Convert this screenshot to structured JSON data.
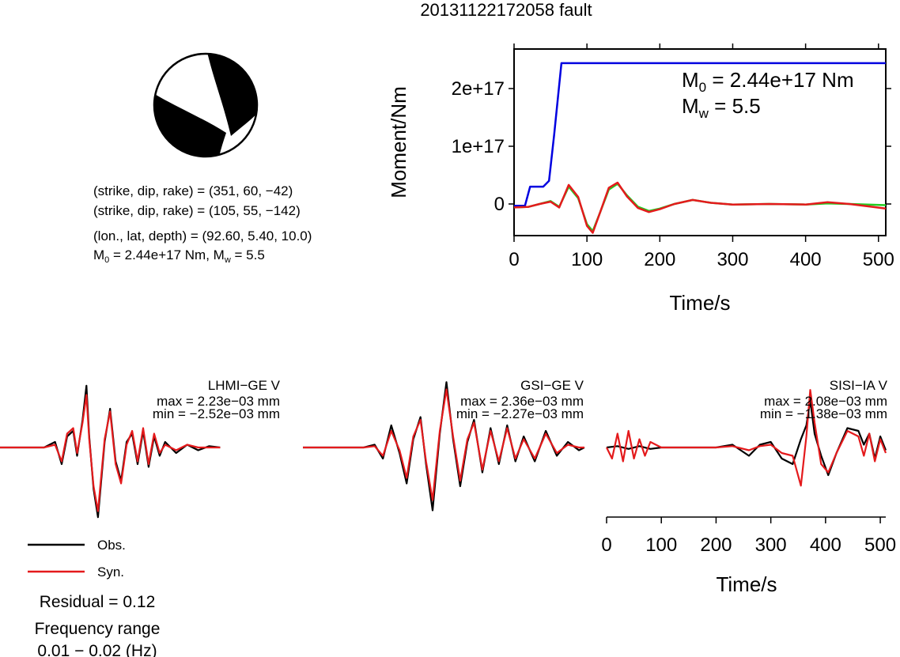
{
  "title": "20131122172058 fault",
  "mechanism": {
    "plane1": "(strike, dip, rake) = (351, 60, −42)",
    "plane2": "(strike, dip, rake) = (105, 55, −142)",
    "location": "(lon., lat, depth) = (92.60, 5.40, 10.0)",
    "moment_prefix": "M",
    "moment_sub": "0",
    "moment_rest": " = 2.44e+17 Nm, M",
    "mw_sub": "w",
    "mw_rest": " = 5.5"
  },
  "moment_plot": {
    "ylabel": "Moment/Nm",
    "xlabel": "Time/s",
    "annot_m0_prefix": "M",
    "annot_m0_sub": "0",
    "annot_m0_rest": " = 2.44e+17 Nm",
    "annot_mw_prefix": "M",
    "annot_mw_sub": "w",
    "annot_mw_rest": " = 5.5"
  },
  "bottom_axis": {
    "xlabel": "Time/s"
  },
  "legend": {
    "obs": "Obs.",
    "syn": "Syn."
  },
  "residual": "Residual = 0.12",
  "frequency": {
    "label": "Frequency range",
    "value": "0.01 − 0.02 (Hz)"
  },
  "colors": {
    "obs": "#000000",
    "syn": "#e41a1c",
    "moment": "#0000e0",
    "moment_rate": "#22cc22"
  },
  "chart_data": [
    {
      "type": "line",
      "title": "",
      "xlabel": "Time/s",
      "ylabel": "Moment/Nm",
      "xlim": [
        0,
        510
      ],
      "ylim": [
        -5.5e+16,
        2.7e+17
      ],
      "xticks": [
        0,
        100,
        200,
        300,
        400,
        500
      ],
      "xtick_labels": [
        "0",
        "100",
        "200",
        "300",
        "400",
        "500"
      ],
      "yticks": [
        0,
        1e+17,
        2e+17
      ],
      "ytick_labels": [
        "0",
        "1e+17",
        "2e+17"
      ],
      "series": [
        {
          "color": "#0000e0",
          "x": [
            0,
            15,
            22,
            40,
            48,
            55,
            65,
            510
          ],
          "y": [
            -3000000000000000.0,
            -3000000000000000.0,
            3e+16,
            3e+16,
            4e+16,
            1.2e+17,
            2.44e+17,
            2.44e+17
          ]
        },
        {
          "color": "#22cc22",
          "x": [
            0,
            20,
            35,
            50,
            62,
            75,
            88,
            100,
            108,
            118,
            130,
            142,
            155,
            170,
            185,
            200,
            220,
            245,
            270,
            300,
            350,
            400,
            430,
            460,
            510
          ],
          "y": [
            -6000000000000000.0,
            -5000000000000000.0,
            0.0,
            5000000000000000.0,
            -5000000000000000.0,
            3e+16,
            1e+16,
            -3.5e+16,
            -4.7e+16,
            -1.5e+16,
            2.5e+16,
            3.5e+16,
            1.5e+16,
            -5000000000000000.0,
            -1.2e+16,
            -8000000000000000.0,
            0.0,
            7000000000000000.0,
            2000000000000000.0,
            -1000000000000000.0,
            0.0,
            -1000000000000000.0,
            1000000000000000.0,
            0.0,
            -2000000000000000.0
          ]
        },
        {
          "color": "#e41a1c",
          "x": [
            0,
            20,
            35,
            50,
            62,
            75,
            88,
            100,
            108,
            118,
            130,
            142,
            155,
            170,
            185,
            200,
            220,
            245,
            270,
            300,
            350,
            400,
            430,
            460,
            510
          ],
          "y": [
            -6000000000000000.0,
            -5000000000000000.0,
            0.0,
            4000000000000000.0,
            -6000000000000000.0,
            3.3e+16,
            1.2e+16,
            -3.8e+16,
            -5e+16,
            -1.5e+16,
            2.8e+16,
            3.7e+16,
            1.3e+16,
            -7000000000000000.0,
            -1.4e+16,
            -9000000000000000.0,
            0.0,
            7000000000000000.0,
            2000000000000000.0,
            -1000000000000000.0,
            0.0,
            -1000000000000000.0,
            3000000000000000.0,
            0.0,
            -8000000000000000.0
          ]
        }
      ]
    },
    {
      "type": "line",
      "title": "LHMI−GE V",
      "max_label": "max = 2.23e−03 mm",
      "min_label": "min = −2.52e−03 mm",
      "xlim": [
        0,
        510
      ],
      "series": [
        {
          "name": "Obs.",
          "color": "#000000",
          "x": [
            0,
            60,
            80,
            100,
            112,
            122,
            133,
            140,
            150,
            157,
            162,
            170,
            178,
            190,
            200,
            210,
            220,
            230,
            240,
            250,
            260,
            270,
            280,
            290,
            300,
            320,
            340,
            360,
            380,
            400
          ],
          "y": [
            0,
            0,
            0,
            0.2,
            -0.6,
            0.4,
            0.6,
            -0.3,
            1.0,
            2.23,
            0.4,
            -1.5,
            -2.52,
            0.2,
            1.4,
            -0.5,
            -1.2,
            0.2,
            0.5,
            -0.6,
            0.6,
            -0.7,
            0.4,
            -0.3,
            0.2,
            -0.2,
            0.1,
            -0.1,
            0.05,
            0
          ]
        },
        {
          "name": "Syn.",
          "color": "#e41a1c",
          "x": [
            0,
            60,
            80,
            100,
            112,
            122,
            133,
            140,
            150,
            157,
            162,
            170,
            178,
            190,
            200,
            210,
            220,
            230,
            240,
            250,
            260,
            270,
            280,
            290,
            300,
            320,
            340,
            360,
            380,
            400
          ],
          "y": [
            0,
            0,
            0,
            0.1,
            -0.5,
            0.5,
            0.7,
            -0.2,
            0.9,
            1.9,
            0.3,
            -1.4,
            -2.3,
            0.3,
            1.3,
            -0.6,
            -1.3,
            0.1,
            0.6,
            -0.5,
            0.7,
            -0.6,
            0.5,
            -0.2,
            0.1,
            -0.1,
            0.1,
            0,
            0,
            0
          ]
        }
      ]
    },
    {
      "type": "line",
      "title": "GSI−GE V",
      "max_label": "max = 2.36e−03 mm",
      "min_label": "min = −2.27e−03 mm",
      "xlim": [
        0,
        510
      ],
      "series": [
        {
          "name": "Obs.",
          "color": "#000000",
          "x": [
            0,
            80,
            110,
            130,
            145,
            160,
            175,
            188,
            200,
            213,
            223,
            235,
            248,
            260,
            272,
            285,
            298,
            310,
            325,
            340,
            355,
            370,
            385,
            400,
            420,
            440,
            460,
            480,
            500,
            510
          ],
          "y": [
            0,
            0,
            0,
            0.1,
            -0.4,
            0.8,
            -0.2,
            -1.3,
            0.3,
            1.1,
            -0.6,
            -2.27,
            0.5,
            2.36,
            0.3,
            -1.4,
            0.2,
            1.0,
            -0.9,
            0.7,
            -0.6,
            0.8,
            -0.5,
            0.4,
            -0.5,
            0.6,
            -0.3,
            0.2,
            -0.1,
            0
          ]
        },
        {
          "name": "Syn.",
          "color": "#e41a1c",
          "x": [
            0,
            80,
            110,
            130,
            145,
            160,
            175,
            188,
            200,
            213,
            223,
            235,
            248,
            260,
            272,
            285,
            298,
            310,
            325,
            340,
            355,
            370,
            385,
            400,
            420,
            440,
            460,
            480,
            500,
            510
          ],
          "y": [
            0,
            0,
            0,
            0.05,
            -0.3,
            0.6,
            -0.1,
            -1.1,
            0.4,
            1.0,
            -0.5,
            -1.9,
            0.6,
            2.1,
            0.4,
            -1.2,
            0.3,
            0.9,
            -0.8,
            0.6,
            -0.5,
            0.7,
            -0.4,
            0.3,
            -0.4,
            0.5,
            -0.2,
            0.1,
            0,
            0
          ]
        }
      ]
    },
    {
      "type": "line",
      "title": "SISI−IA V",
      "max_label": "max = 2.08e−03 mm",
      "min_label": "min = −1.38e−03 mm",
      "xlabel": "Time/s",
      "xlim": [
        0,
        510
      ],
      "xticks": [
        0,
        100,
        200,
        300,
        400,
        500
      ],
      "xtick_labels": [
        "0",
        "100",
        "200",
        "300",
        "400",
        "500"
      ],
      "series": [
        {
          "name": "Obs.",
          "color": "#000000",
          "x": [
            0,
            20,
            40,
            60,
            80,
            100,
            150,
            200,
            230,
            260,
            280,
            300,
            320,
            340,
            355,
            365,
            372,
            380,
            392,
            405,
            420,
            440,
            460,
            470,
            480,
            490,
            500,
            510
          ],
          "y": [
            0,
            0.05,
            -0.05,
            0.05,
            -0.05,
            0,
            0,
            0,
            0.1,
            -0.3,
            0.1,
            0.2,
            -0.4,
            -0.6,
            0.3,
            0.8,
            1.7,
            0.5,
            -0.3,
            -1.0,
            -0.2,
            0.7,
            0.6,
            0.1,
            0.5,
            -0.4,
            0.4,
            -0.1
          ]
        },
        {
          "name": "Syn.",
          "color": "#e41a1c",
          "x": [
            0,
            10,
            20,
            30,
            40,
            50,
            60,
            70,
            80,
            100,
            150,
            200,
            230,
            260,
            280,
            300,
            320,
            340,
            355,
            365,
            372,
            380,
            392,
            405,
            420,
            440,
            460,
            470,
            480,
            490,
            500,
            510
          ],
          "y": [
            0,
            -0.4,
            0.5,
            -0.5,
            0.6,
            -0.4,
            0.3,
            -0.3,
            0.2,
            0,
            0,
            0,
            0.05,
            -0.1,
            0.05,
            0.1,
            -0.2,
            -0.3,
            -1.38,
            0.4,
            2.08,
            0.9,
            -0.6,
            -0.9,
            -0.2,
            0.6,
            0.4,
            -0.3,
            0.5,
            -0.5,
            0.3,
            -0.2
          ]
        }
      ]
    }
  ]
}
